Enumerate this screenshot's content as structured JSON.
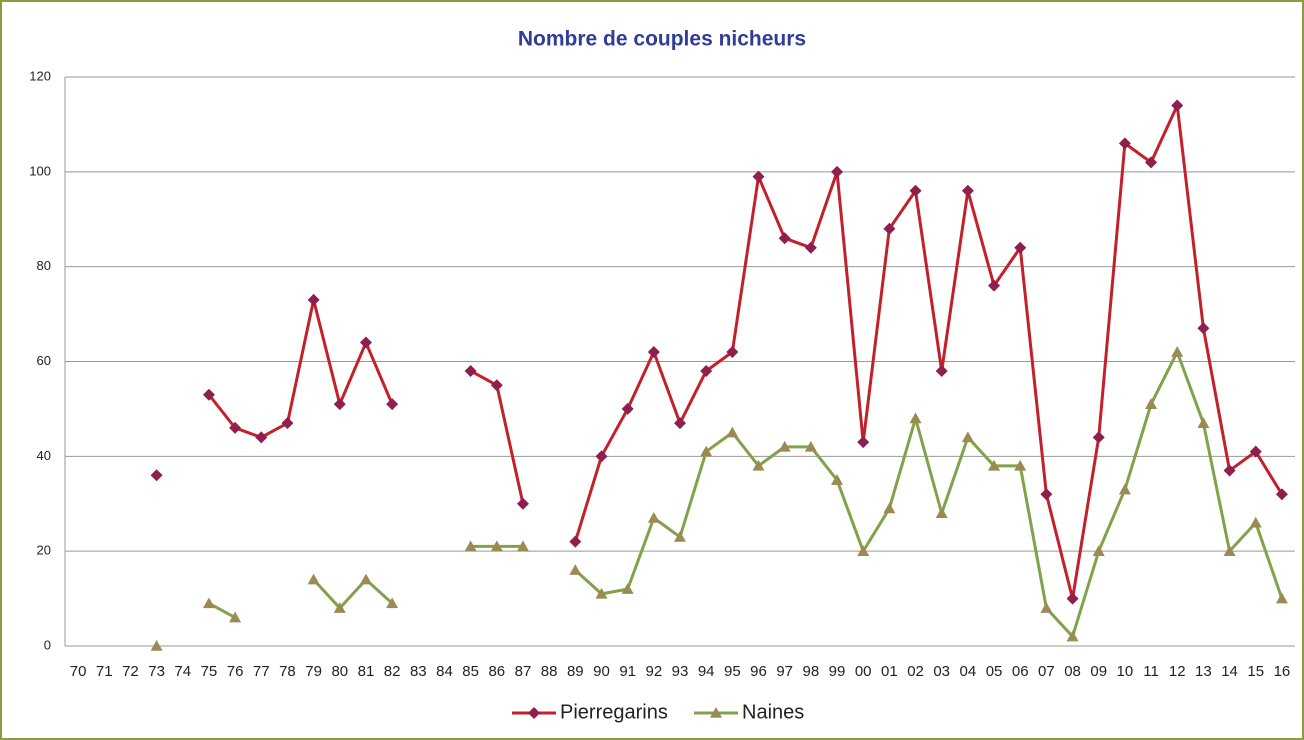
{
  "chart_data": {
    "type": "line",
    "title": "Nombre de couples nicheurs",
    "categories": [
      "70",
      "71",
      "72",
      "73",
      "74",
      "75",
      "76",
      "77",
      "78",
      "79",
      "80",
      "81",
      "82",
      "83",
      "84",
      "85",
      "86",
      "87",
      "88",
      "89",
      "90",
      "91",
      "92",
      "93",
      "94",
      "95",
      "96",
      "97",
      "98",
      "99",
      "00",
      "01",
      "02",
      "03",
      "04",
      "05",
      "06",
      "07",
      "08",
      "09",
      "10",
      "11",
      "12",
      "13",
      "14",
      "15",
      "16"
    ],
    "series": [
      {
        "name": "Pierregarins",
        "color": "#c3202b",
        "marker_color": "#8e1f4f",
        "marker": "diamond",
        "values": [
          null,
          null,
          null,
          36,
          null,
          53,
          46,
          44,
          47,
          73,
          51,
          64,
          51,
          null,
          null,
          58,
          55,
          30,
          null,
          22,
          40,
          50,
          62,
          47,
          58,
          62,
          99,
          86,
          84,
          100,
          43,
          88,
          96,
          58,
          96,
          76,
          84,
          32,
          10,
          44,
          106,
          102,
          114,
          67,
          37,
          41,
          32
        ]
      },
      {
        "name": "Naines",
        "color": "#80a34a",
        "marker_color": "#9c8a55",
        "marker": "triangle",
        "values": [
          null,
          null,
          null,
          0,
          null,
          9,
          6,
          null,
          null,
          14,
          8,
          14,
          9,
          null,
          null,
          21,
          21,
          21,
          null,
          16,
          11,
          12,
          27,
          23,
          41,
          45,
          38,
          42,
          42,
          35,
          20,
          29,
          48,
          28,
          44,
          38,
          38,
          8,
          2,
          20,
          33,
          51,
          62,
          47,
          20,
          26,
          10
        ]
      }
    ],
    "ylim": [
      0,
      120
    ],
    "yticks": [
      0,
      20,
      40,
      60,
      80,
      100,
      120
    ],
    "grid": true,
    "legend": "bottom"
  }
}
